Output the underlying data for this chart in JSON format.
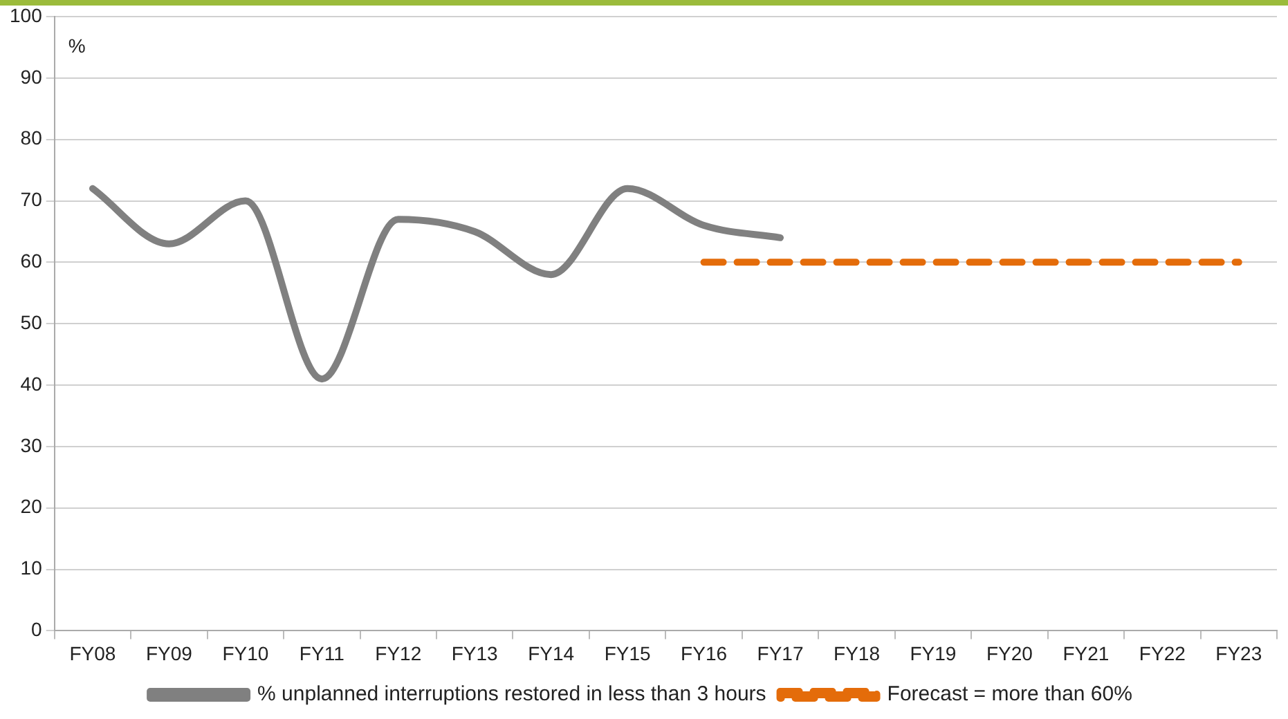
{
  "chart_data": {
    "type": "line",
    "ylabel": "%",
    "categories": [
      "FY08",
      "FY09",
      "FY10",
      "FY11",
      "FY12",
      "FY13",
      "FY14",
      "FY15",
      "FY16",
      "FY17",
      "FY18",
      "FY19",
      "FY20",
      "FY21",
      "FY22",
      "FY23"
    ],
    "series": [
      {
        "name": "% unplanned interruptions restored in less than 3 hours",
        "color": "#808080",
        "line_style": "solid",
        "values": [
          72,
          63,
          70,
          41,
          67,
          65,
          58,
          72,
          66,
          64,
          null,
          null,
          null,
          null,
          null,
          null
        ]
      },
      {
        "name": "Forecast = more than 60%",
        "color": "#e46c0a",
        "line_style": "dashed",
        "values": [
          null,
          null,
          null,
          null,
          null,
          null,
          null,
          null,
          60,
          60,
          60,
          60,
          60,
          60,
          60,
          60
        ]
      }
    ],
    "ylim": [
      0,
      100
    ],
    "yticks": [
      0,
      10,
      20,
      30,
      40,
      50,
      60,
      70,
      80,
      90,
      100
    ],
    "grid": "y",
    "legend": "bottom",
    "marker": "none"
  }
}
